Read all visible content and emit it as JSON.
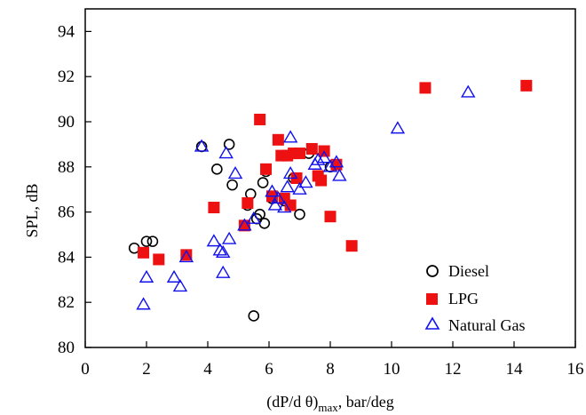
{
  "chart_data": {
    "type": "scatter",
    "xlabel": "(dP/d θ)",
    "xlabel_subscript": "max",
    "xlabel_suffix": ", bar/deg",
    "ylabel": "SPL, dB",
    "xlim": [
      0,
      16
    ],
    "ylim": [
      80,
      95
    ],
    "x_ticks": [
      0,
      2,
      4,
      6,
      8,
      10,
      12,
      14,
      16
    ],
    "y_ticks": [
      80,
      82,
      84,
      86,
      88,
      90,
      92,
      94
    ],
    "x_tick_labels": [
      "0",
      "2",
      "4",
      "6",
      "8",
      "10",
      "12",
      "14",
      "16"
    ],
    "y_tick_labels": [
      "80",
      "82",
      "84",
      "86",
      "88",
      "90",
      "92",
      "94"
    ],
    "grid": false,
    "legend_position": "bottom-right",
    "series": [
      {
        "name": "Diesel",
        "marker": "circle-open",
        "color": "#000000",
        "points": [
          [
            1.6,
            84.4
          ],
          [
            2.0,
            84.7
          ],
          [
            2.2,
            84.7
          ],
          [
            3.8,
            88.9
          ],
          [
            4.3,
            87.9
          ],
          [
            4.7,
            89.0
          ],
          [
            4.8,
            87.2
          ],
          [
            5.3,
            86.3
          ],
          [
            5.4,
            86.8
          ],
          [
            5.5,
            81.4
          ],
          [
            5.6,
            85.7
          ],
          [
            5.7,
            85.9
          ],
          [
            5.8,
            87.3
          ],
          [
            5.9,
            87.8
          ],
          [
            5.85,
            85.5
          ],
          [
            6.1,
            86.6
          ],
          [
            6.5,
            86.5
          ],
          [
            6.8,
            87.5
          ],
          [
            7.0,
            85.9
          ],
          [
            7.3,
            88.6
          ],
          [
            8.0,
            88.0
          ]
        ]
      },
      {
        "name": "LPG",
        "marker": "square-filled",
        "color": "#ee1111",
        "points": [
          [
            1.9,
            84.2
          ],
          [
            2.4,
            83.9
          ],
          [
            3.3,
            84.1
          ],
          [
            4.2,
            86.2
          ],
          [
            5.2,
            85.4
          ],
          [
            5.3,
            86.4
          ],
          [
            5.7,
            90.1
          ],
          [
            5.9,
            87.9
          ],
          [
            6.1,
            86.7
          ],
          [
            6.3,
            89.2
          ],
          [
            6.4,
            88.5
          ],
          [
            6.5,
            86.6
          ],
          [
            6.6,
            88.5
          ],
          [
            6.7,
            86.3
          ],
          [
            6.8,
            88.6
          ],
          [
            6.9,
            87.5
          ],
          [
            7.0,
            88.6
          ],
          [
            7.4,
            88.8
          ],
          [
            7.6,
            87.6
          ],
          [
            7.7,
            87.4
          ],
          [
            7.8,
            88.7
          ],
          [
            8.0,
            85.8
          ],
          [
            8.2,
            88.1
          ],
          [
            8.7,
            84.5
          ],
          [
            11.1,
            91.5
          ],
          [
            14.4,
            91.6
          ]
        ]
      },
      {
        "name": "Natural Gas",
        "marker": "triangle-open",
        "color": "#1111ee",
        "points": [
          [
            1.9,
            81.9
          ],
          [
            2.0,
            83.1
          ],
          [
            2.9,
            83.1
          ],
          [
            3.1,
            82.7
          ],
          [
            3.3,
            84.0
          ],
          [
            3.8,
            88.9
          ],
          [
            4.2,
            84.7
          ],
          [
            4.4,
            84.3
          ],
          [
            4.5,
            84.2
          ],
          [
            4.5,
            83.3
          ],
          [
            4.6,
            88.6
          ],
          [
            4.7,
            84.8
          ],
          [
            4.9,
            87.7
          ],
          [
            5.2,
            85.4
          ],
          [
            5.5,
            85.7
          ],
          [
            6.1,
            86.9
          ],
          [
            6.2,
            86.3
          ],
          [
            6.3,
            86.6
          ],
          [
            6.5,
            86.2
          ],
          [
            6.6,
            87.1
          ],
          [
            6.7,
            89.3
          ],
          [
            6.7,
            87.7
          ],
          [
            7.0,
            87.0
          ],
          [
            7.2,
            87.3
          ],
          [
            7.5,
            88.1
          ],
          [
            7.6,
            88.3
          ],
          [
            7.8,
            88.4
          ],
          [
            8.0,
            88.0
          ],
          [
            8.2,
            88.2
          ],
          [
            8.3,
            87.6
          ],
          [
            10.2,
            89.7
          ],
          [
            12.5,
            91.3
          ]
        ]
      }
    ]
  }
}
